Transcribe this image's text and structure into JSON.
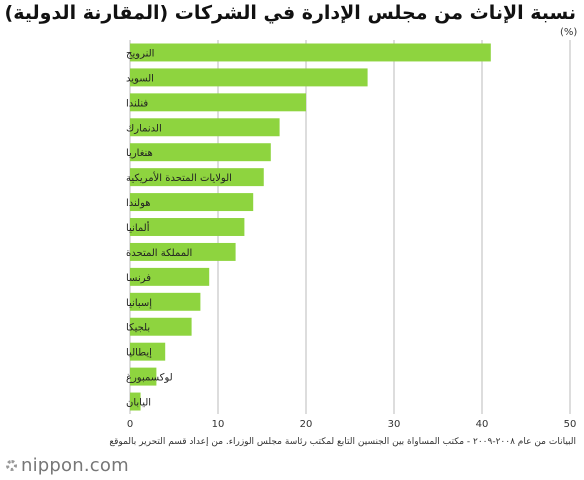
{
  "header": {
    "title": "نسبة الإناث من مجلس الإدارة في الشركات (المقارنة الدولية)",
    "unit": "(%)"
  },
  "chart_data": {
    "type": "bar",
    "orientation": "horizontal",
    "categories": [
      "النرويج",
      "السويد",
      "فنلندا",
      "الدنمارك",
      "هنغاريا",
      "الولايات المتحدة الأمريكية",
      "هولندا",
      "ألمانيا",
      "المملكة المتحدة",
      "فرنسا",
      "إسبانيا",
      "بلجيكا",
      "إيطاليا",
      "لوكسمبورغ",
      "اليابان"
    ],
    "values": [
      41,
      27,
      20,
      17,
      16,
      15.2,
      14,
      13,
      12,
      9,
      8,
      7,
      4,
      3,
      1.2
    ],
    "xlim": [
      0,
      50
    ],
    "xticks": [
      "0",
      "10",
      "20",
      "30",
      "40",
      "50"
    ],
    "grid": true,
    "bar_color": "#8ed43f",
    "grid_color": "#bbbbbb"
  },
  "footer": {
    "source": "البيانات من عام ٢٠٠٨-٢٠٠٩ - مكتب المساواة بين الجنسين التابع لمكتب رئاسة مجلس الوزراء. من إعداد قسم التحرير بالموقع",
    "brand": "nippon.com"
  }
}
